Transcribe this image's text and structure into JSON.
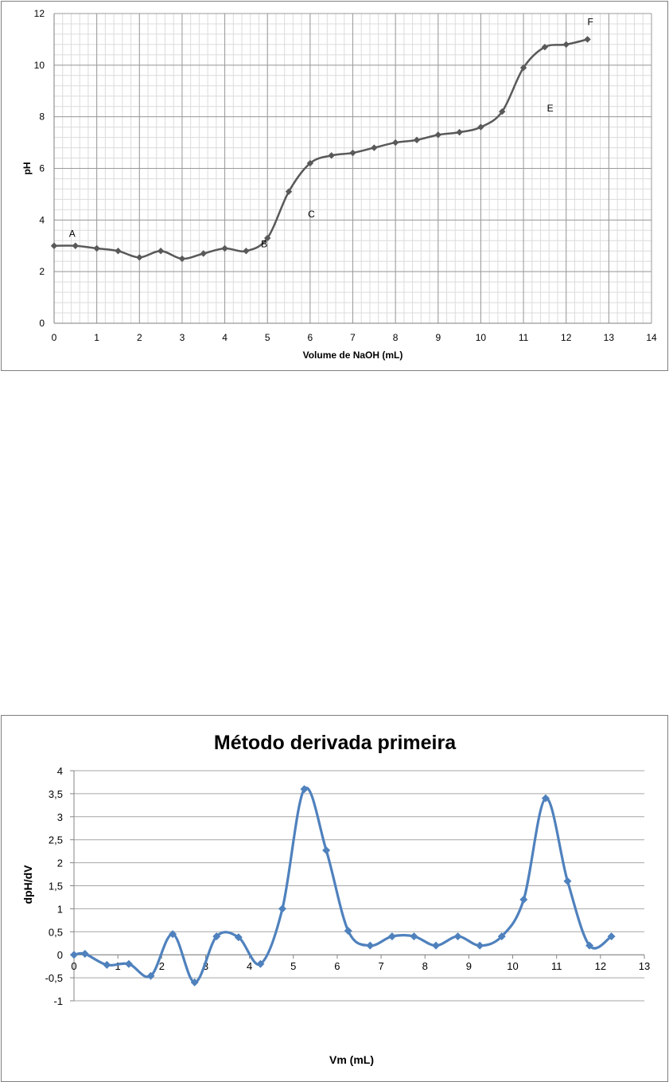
{
  "chart_data": [
    {
      "type": "line",
      "title": "",
      "xlabel": "Volume de NaOH (mL)",
      "ylabel": "pH",
      "xlim": [
        0,
        14
      ],
      "ylim": [
        0,
        12
      ],
      "xticks": [
        "0",
        "1",
        "2",
        "3",
        "4",
        "5",
        "6",
        "7",
        "8",
        "9",
        "10",
        "11",
        "12",
        "13",
        "14"
      ],
      "yticks": [
        "0",
        "2",
        "4",
        "6",
        "8",
        "10",
        "12"
      ],
      "grid": true,
      "line_color": "#595959",
      "series": [
        {
          "x": [
            0,
            0.5,
            1,
            1.5,
            2,
            2.5,
            3,
            3.5,
            4,
            4.5,
            5,
            5.5,
            6,
            6.5,
            7,
            7.5,
            8,
            8.5,
            9,
            9.5,
            10,
            10.5,
            11,
            11.5,
            12,
            12.5
          ],
          "y": [
            3.0,
            3.0,
            2.9,
            2.8,
            2.55,
            2.8,
            2.5,
            2.7,
            2.9,
            2.8,
            3.3,
            5.1,
            6.2,
            6.5,
            6.6,
            6.8,
            7.0,
            7.1,
            7.3,
            7.4,
            7.6,
            8.2,
            9.9,
            10.7,
            10.8,
            11.0
          ]
        }
      ],
      "annotations": [
        {
          "text": "A",
          "x": 0.35,
          "y": 3.35
        },
        {
          "text": "B",
          "x": 4.85,
          "y": 2.95
        },
        {
          "text": "C",
          "x": 5.95,
          "y": 4.1
        },
        {
          "text": "E",
          "x": 11.55,
          "y": 8.2
        },
        {
          "text": "F",
          "x": 12.5,
          "y": 11.55
        }
      ]
    },
    {
      "type": "line",
      "title": "Método derivada primeira",
      "xlabel": "Vm (mL)",
      "ylabel": "dpH/dV",
      "xlim": [
        0,
        13
      ],
      "ylim": [
        -1,
        4
      ],
      "xticks": [
        "0",
        "1",
        "2",
        "3",
        "4",
        "5",
        "6",
        "7",
        "8",
        "9",
        "10",
        "11",
        "12",
        "13"
      ],
      "yticks": [
        "-1",
        "-0,5",
        "0",
        "0,5",
        "1",
        "1,5",
        "2",
        "2,5",
        "3",
        "3,5",
        "4"
      ],
      "grid": true,
      "line_color": "#4f81bd",
      "series": [
        {
          "x": [
            0,
            0.25,
            0.75,
            1.25,
            1.75,
            2.25,
            2.75,
            3.25,
            3.75,
            4.25,
            4.75,
            5.25,
            5.75,
            6.25,
            6.75,
            7.25,
            7.75,
            8.25,
            8.75,
            9.25,
            9.75,
            10.25,
            10.75,
            11.25,
            11.75,
            12.25
          ],
          "y": [
            0,
            0.02,
            -0.22,
            -0.2,
            -0.46,
            0.45,
            -0.6,
            0.4,
            0.38,
            -0.2,
            1.0,
            3.6,
            2.27,
            0.52,
            0.2,
            0.4,
            0.4,
            0.2,
            0.4,
            0.2,
            0.4,
            1.2,
            3.4,
            1.6,
            0.2,
            0.4
          ]
        }
      ]
    }
  ]
}
